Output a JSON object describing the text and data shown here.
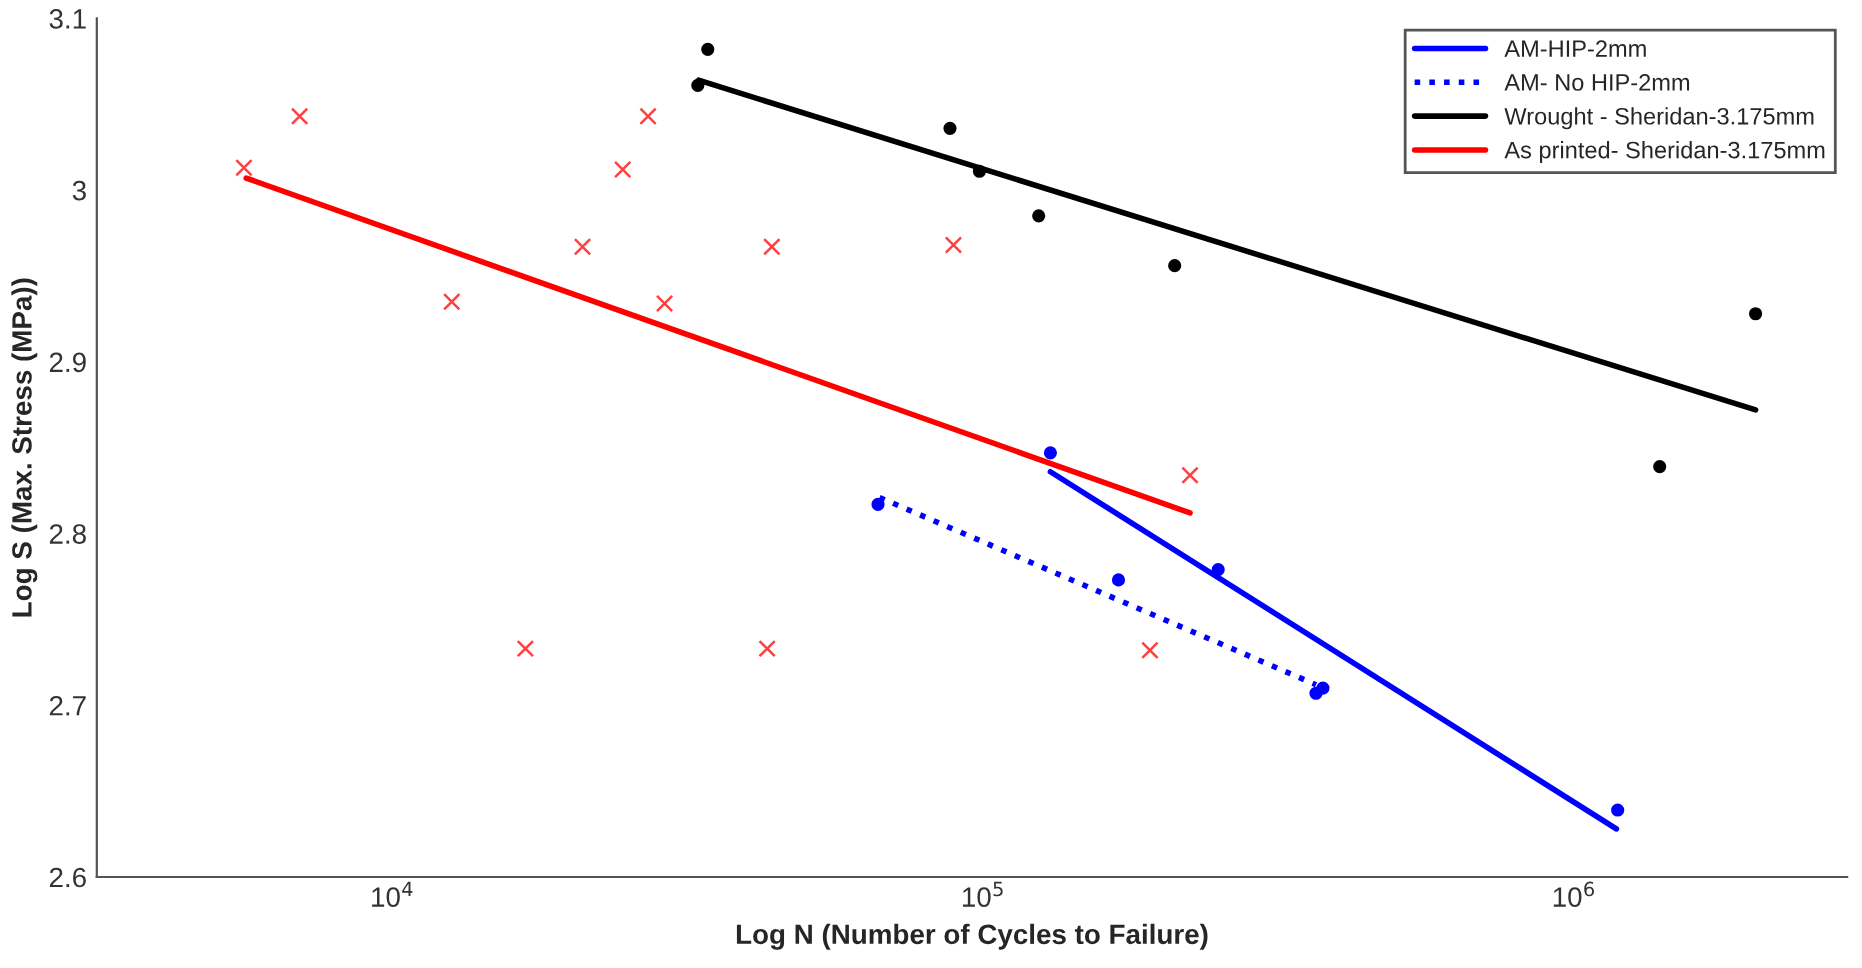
{
  "chart_data": {
    "type": "scatter",
    "xlabel": "Log N (Number of Cycles to Failure)",
    "ylabel": "Log S (Max. Stress (MPa))",
    "log": "x",
    "xlim": [
      3162,
      2900000
    ],
    "ylim": [
      2.6,
      3.1
    ],
    "xticks": [
      {
        "value": 10000,
        "label": "10$^{4}$"
      },
      {
        "value": 100000,
        "label": "10$^{5}$"
      },
      {
        "value": 1000000,
        "label": "10$^{6}$"
      }
    ],
    "yticks": [
      2.6,
      2.7,
      2.8,
      2.9,
      3,
      3.1
    ],
    "grid": false,
    "legend": "top right",
    "series": [
      {
        "marker": "circle",
        "color": "#0000ff",
        "x": [
          130000,
          250000,
          376000,
          1186000
        ],
        "values": [
          2.847,
          2.779,
          2.71,
          2.639
        ]
      },
      {
        "type": "line",
        "name": "AM-HIP-2mm",
        "line_style": "solid",
        "color": "#0000ff",
        "x": [
          130000,
          1180000
        ],
        "values": [
          2.836,
          2.628
        ]
      },
      {
        "marker": "circle",
        "color": "#0000ff",
        "x": [
          66400,
          169500,
          366000
        ],
        "values": [
          2.817,
          2.773,
          2.707
        ]
      },
      {
        "type": "line",
        "name": "AM- No HIP-2mm",
        "line_style": "dotted",
        "color": "#0000ff",
        "x": [
          66800,
          366000
        ],
        "values": [
          2.821,
          2.712
        ]
      },
      {
        "marker": "circle",
        "color": "#000000",
        "x": [
          34200,
          32900,
          87900,
          98600,
          124200,
          211000,
          2030000,
          1397000
        ],
        "values": [
          3.082,
          3.061,
          3.036,
          3.011,
          2.985,
          2.956,
          2.928,
          2.839
        ]
      },
      {
        "type": "line",
        "name": "Wrought - Sheridan-3.175mm",
        "line_style": "solid",
        "color": "#000000",
        "x": [
          33000,
          2030000
        ],
        "values": [
          3.064,
          2.872
        ]
      },
      {
        "marker": "cross",
        "color": "#ff4040",
        "x": [
          5610,
          6970,
          12610,
          20990,
          24550,
          27100,
          28900,
          43900,
          89100,
          224000,
          16800,
          43100,
          191600
        ],
        "values": [
          3.013,
          3.043,
          2.935,
          2.967,
          3.012,
          3.043,
          2.934,
          2.967,
          2.968,
          2.834,
          2.733,
          2.733,
          2.732
        ]
      },
      {
        "type": "line",
        "name": "As printed- Sheridan-3.175mm",
        "line_style": "solid",
        "color": "#ff0000",
        "x": [
          5660,
          224000
        ],
        "values": [
          3.007,
          2.812
        ]
      }
    ]
  }
}
